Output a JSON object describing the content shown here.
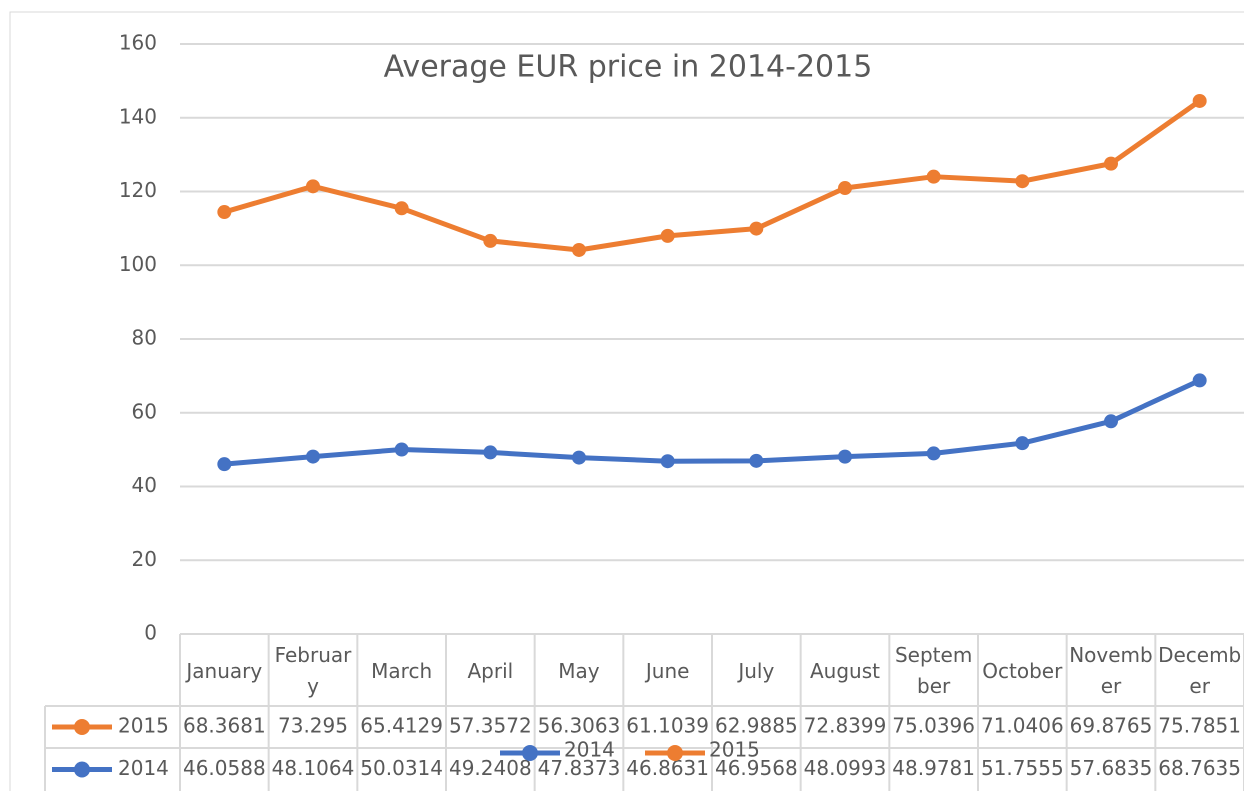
{
  "chart_data": {
    "type": "stacked-line",
    "title": "Average EUR price in 2014-2015",
    "categories": [
      "January",
      "February",
      "March",
      "April",
      "May",
      "June",
      "July",
      "August",
      "September",
      "October",
      "November",
      "December"
    ],
    "series": [
      {
        "name": "2014",
        "color": "#4472c4",
        "values": [
          46.0588,
          48.1064,
          50.0314,
          49.2408,
          47.8373,
          46.8631,
          46.9568,
          48.0993,
          48.9781,
          51.7555,
          57.6835,
          68.7635
        ]
      },
      {
        "name": "2015",
        "color": "#ed7d31",
        "values": [
          68.3681,
          73.295,
          65.4129,
          57.3572,
          56.3063,
          61.1039,
          62.9885,
          72.8399,
          75.0396,
          71.0406,
          69.8765,
          75.7851
        ]
      }
    ],
    "ylim": [
      0,
      160
    ],
    "yticks": [
      0,
      20,
      40,
      60,
      80,
      100,
      120,
      140,
      160
    ],
    "grid": true,
    "data_table": true,
    "legend": "bottom"
  }
}
